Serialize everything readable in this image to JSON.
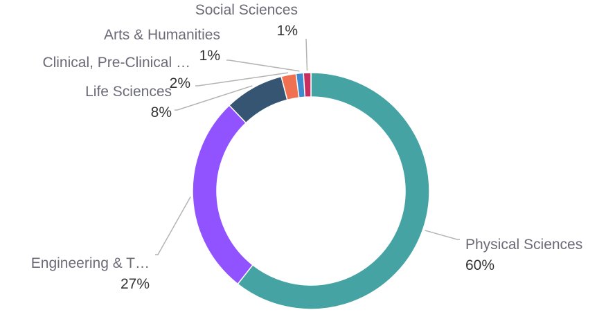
{
  "chart_data": {
    "type": "pie",
    "style": "donut",
    "title": "",
    "slices": [
      {
        "name": "Physical Sciences",
        "value": 60,
        "label": "60%",
        "color": "#45A3A3"
      },
      {
        "name": "Engineering & T…",
        "value": 27,
        "label": "27%",
        "color": "#9152FF"
      },
      {
        "name": "Life Sciences",
        "value": 8,
        "label": "8%",
        "color": "#365573"
      },
      {
        "name": "Clinical, Pre-Clinical …",
        "value": 2,
        "label": "2%",
        "color": "#F07152"
      },
      {
        "name": "Arts & Humanities",
        "value": 1,
        "label": "1%",
        "color": "#3D8ACF"
      },
      {
        "name": "Social Sciences",
        "value": 1,
        "label": "1%",
        "color": "#C7305E"
      }
    ]
  }
}
